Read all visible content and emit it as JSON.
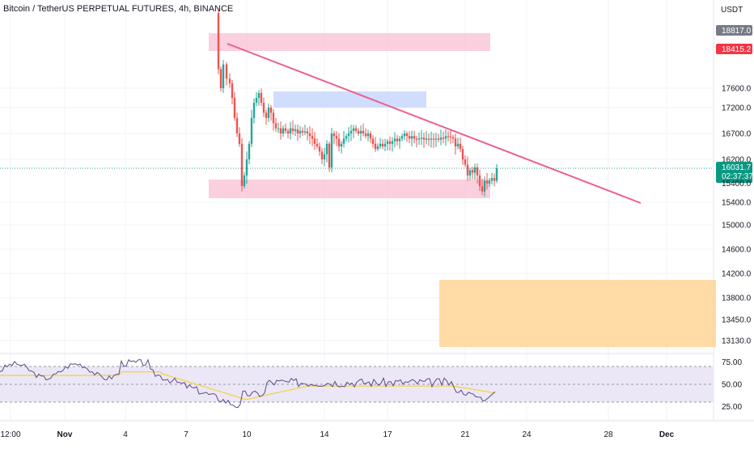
{
  "header": {
    "title": "Bitcoin / TetherUS PERPETUAL FUTURES, 4h, BINANCE"
  },
  "price_axis": {
    "unit": "USDT",
    "ticks": [
      17600,
      17200,
      16700,
      16200,
      15400,
      15000,
      14600,
      14200,
      13800,
      13450,
      13130
    ],
    "tick_labels": [
      "17600.0",
      "17200.0",
      "16700.0",
      "16200.0",
      "15400.0",
      "15000.0",
      "14600.0",
      "14200.0",
      "13800.0",
      "13450.0",
      "13130.0"
    ]
  },
  "price_tags": {
    "high": {
      "label": "18817.0",
      "color": "#787b86"
    },
    "alert": {
      "label": "18415.2",
      "color": "#f23645"
    },
    "last": {
      "label": "16031.7",
      "countdown": "02:37:37",
      "color": "#089981"
    },
    "partial_label": "15400.0"
  },
  "time_axis": {
    "labels": [
      "12:00",
      "Nov",
      "4",
      "7",
      "10",
      "14",
      "17",
      "21",
      "24",
      "28",
      "Dec"
    ]
  },
  "rsi_axis": {
    "labels": [
      "75.00",
      "50.00",
      "25.00"
    ]
  },
  "colors": {
    "bull": "#26a69a",
    "bear": "#ef5350",
    "trendline": "#ec5f8c",
    "resistance_zone": "#f8bbd0",
    "supply_zone_blue": "#c5d5fb",
    "target_zone": "#ffcc80",
    "rsi_line": "#5b4b8a",
    "rsi_ma": "#f5d03b",
    "rsi_band": "#ece7f6"
  },
  "chart_data": {
    "type": "candlestick",
    "interval": "4h",
    "symbol": "BTCUSDT.P",
    "last_price": 16031.7,
    "drawings": {
      "trendline": [
        {
          "t": "Nov 8",
          "price": 18000
        },
        {
          "t": "Nov 29",
          "price": 15500
        }
      ],
      "zones": [
        {
          "name": "upper-resistance",
          "from": 18600,
          "to": 18300
        },
        {
          "name": "mid-supply",
          "from": 17450,
          "to": 17150
        },
        {
          "name": "support",
          "from": 15800,
          "to": 15500
        },
        {
          "name": "target",
          "from": 14100,
          "to": 13050
        }
      ]
    },
    "rsi_levels": [
      70,
      50,
      30
    ]
  }
}
